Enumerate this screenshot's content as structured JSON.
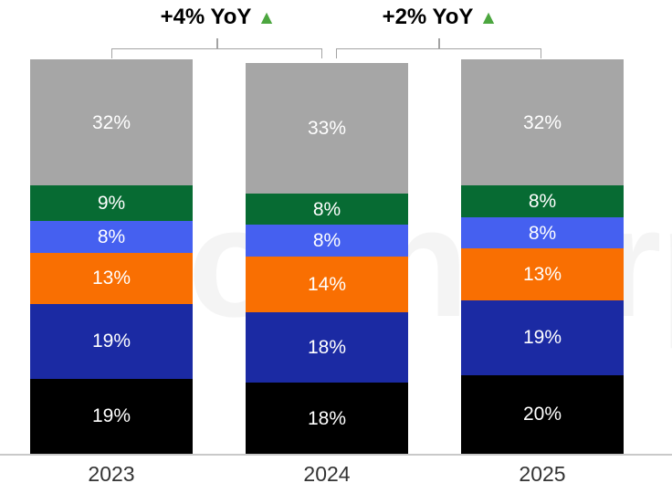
{
  "watermark": {
    "text": "Counterpoint"
  },
  "chart_data": {
    "type": "bar",
    "subtype": "stacked-column",
    "title": "",
    "categories": [
      "2023",
      "2024",
      "2025"
    ],
    "value_suffix": "%",
    "series": [
      {
        "name": "segment-black",
        "color": "#000000",
        "values": [
          19,
          18,
          20
        ]
      },
      {
        "name": "segment-navy",
        "color": "#1b2aa3",
        "values": [
          19,
          18,
          19
        ]
      },
      {
        "name": "segment-orange",
        "color": "#f96f02",
        "values": [
          13,
          14,
          13
        ]
      },
      {
        "name": "segment-blue",
        "color": "#4560f0",
        "values": [
          8,
          8,
          8
        ]
      },
      {
        "name": "segment-green",
        "color": "#076b33",
        "values": [
          9,
          8,
          8
        ]
      },
      {
        "name": "segment-gray",
        "color": "#a6a6a6",
        "values": [
          32,
          33,
          32
        ]
      }
    ],
    "segment_labels": [
      [
        "32%",
        "9%",
        "8%",
        "13%",
        "19%",
        "19%"
      ],
      [
        "33%",
        "8%",
        "8%",
        "14%",
        "18%",
        "18%"
      ],
      [
        "32%",
        "8%",
        "8%",
        "13%",
        "19%",
        "20%"
      ]
    ],
    "annotations": [
      {
        "label": "+4% YoY",
        "triangle": "▲",
        "triangle_color": "#4ca63f",
        "between": [
          "2023",
          "2024"
        ]
      },
      {
        "label": "+2% YoY",
        "triangle": "▲",
        "triangle_color": "#4ca63f",
        "between": [
          "2024",
          "2025"
        ]
      }
    ],
    "ylim": [
      0,
      100
    ],
    "grid": false,
    "legend": false,
    "value_label_color": "#ffffff",
    "axis_line_color": "#c9c9c9",
    "bracket_color": "#a3a3a3"
  }
}
